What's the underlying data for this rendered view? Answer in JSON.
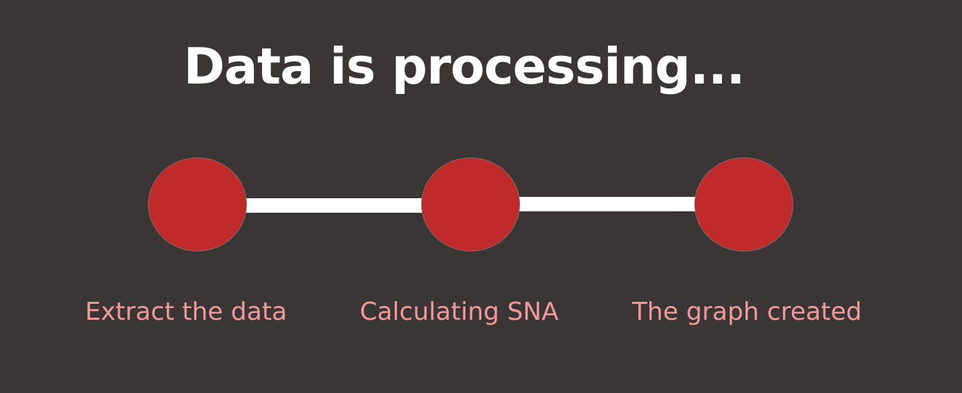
{
  "title": "Data is processing...",
  "colors": {
    "background": "#3a3636",
    "circle": "#c02a2a",
    "connector": "#ffffff",
    "label": "#f29a98",
    "title": "#ffffff"
  },
  "steps": [
    {
      "label": "Extract the data"
    },
    {
      "label": "Calculating SNA"
    },
    {
      "label": "The graph created"
    }
  ]
}
